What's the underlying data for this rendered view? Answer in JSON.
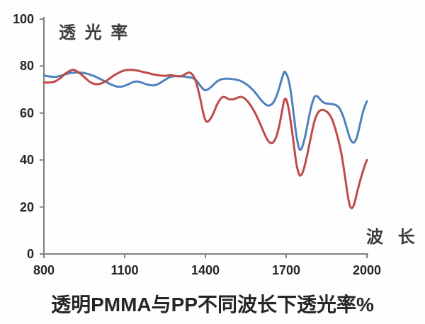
{
  "figure": {
    "y_axis_title": "透 光 率",
    "x_axis_title": "波 长",
    "caption": "透明PMMA与PP不同波长下透光率%",
    "colors": {
      "blue_line": "#4f81bd",
      "red_line": "#be4b48",
      "axis": "#808080",
      "text": "#262626"
    }
  },
  "chart_data": {
    "type": "line",
    "title": "透明PMMA与PP不同波长下透光率%",
    "xlabel": "波 长",
    "ylabel": "透 光 率",
    "xlim": [
      800,
      2000
    ],
    "ylim": [
      0,
      100
    ],
    "x_ticks": [
      800,
      1100,
      1400,
      1700,
      2000
    ],
    "y_ticks": [
      0,
      20,
      40,
      60,
      80,
      100
    ],
    "grid": false,
    "legend": "none",
    "x": [
      800,
      820,
      840,
      860,
      880,
      900,
      910,
      925,
      940,
      955,
      970,
      985,
      1000,
      1015,
      1030,
      1045,
      1060,
      1075,
      1090,
      1105,
      1120,
      1135,
      1150,
      1165,
      1180,
      1195,
      1210,
      1225,
      1240,
      1255,
      1270,
      1285,
      1300,
      1315,
      1330,
      1342,
      1355,
      1367,
      1380,
      1392,
      1400,
      1408,
      1420,
      1432,
      1445,
      1460,
      1472,
      1485,
      1500,
      1515,
      1530,
      1545,
      1560,
      1575,
      1590,
      1605,
      1620,
      1632,
      1645,
      1655,
      1665,
      1675,
      1685,
      1693,
      1700,
      1708,
      1718,
      1728,
      1738,
      1748,
      1756,
      1765,
      1775,
      1785,
      1795,
      1805,
      1815,
      1825,
      1835,
      1845,
      1858,
      1870,
      1882,
      1895,
      1907,
      1918,
      1928,
      1936,
      1944,
      1952,
      1962,
      1972,
      1982,
      1991,
      2000
    ],
    "series": [
      {
        "name": "blue",
        "color": "#4f81bd",
        "values": [
          76.0,
          75.6,
          75.4,
          75.8,
          76.5,
          77.1,
          77.2,
          77.3,
          77.2,
          76.9,
          76.4,
          75.8,
          75.0,
          74.2,
          73.3,
          72.4,
          71.7,
          71.2,
          71.3,
          71.8,
          72.6,
          73.3,
          73.4,
          72.9,
          72.3,
          71.9,
          71.8,
          72.4,
          73.4,
          74.5,
          75.4,
          75.7,
          75.7,
          75.6,
          75.4,
          75.2,
          74.8,
          73.8,
          71.8,
          70.2,
          69.7,
          70.0,
          71.0,
          72.3,
          73.6,
          74.4,
          74.6,
          74.6,
          74.5,
          74.2,
          73.7,
          72.8,
          71.6,
          70.0,
          68.0,
          65.8,
          64.0,
          63.2,
          63.6,
          65.0,
          67.5,
          71.0,
          75.0,
          77.5,
          76.8,
          74.5,
          68.5,
          59.5,
          50.5,
          45.0,
          44.7,
          47.5,
          52.5,
          58.5,
          63.5,
          66.8,
          67.2,
          66.0,
          64.8,
          64.2,
          64.0,
          63.8,
          63.5,
          62.5,
          60.0,
          56.5,
          52.5,
          49.5,
          47.8,
          47.5,
          49.5,
          54.0,
          59.0,
          62.5,
          65.0
        ]
      },
      {
        "name": "red",
        "color": "#be4b48",
        "values": [
          73.0,
          73.0,
          73.4,
          74.8,
          76.8,
          78.2,
          78.4,
          77.6,
          76.3,
          74.8,
          73.3,
          72.5,
          72.3,
          72.7,
          73.6,
          74.8,
          76.0,
          77.0,
          77.8,
          78.3,
          78.4,
          78.3,
          78.0,
          77.6,
          77.2,
          76.8,
          76.4,
          76.1,
          75.9,
          75.9,
          76.1,
          75.9,
          75.6,
          75.9,
          76.9,
          77.2,
          75.8,
          72.5,
          66.5,
          60.0,
          57.0,
          56.3,
          57.8,
          60.5,
          64.0,
          66.5,
          66.8,
          66.0,
          65.8,
          66.3,
          66.9,
          66.3,
          64.5,
          62.0,
          58.8,
          55.0,
          51.0,
          48.3,
          47.2,
          48.0,
          50.5,
          55.0,
          61.0,
          65.5,
          65.8,
          62.5,
          55.5,
          47.0,
          38.5,
          34.0,
          33.6,
          36.0,
          40.5,
          46.0,
          51.5,
          56.5,
          59.5,
          61.0,
          61.4,
          61.0,
          59.8,
          57.5,
          53.5,
          48.0,
          41.5,
          33.5,
          25.5,
          20.8,
          19.5,
          21.0,
          25.5,
          30.0,
          34.0,
          37.3,
          40.0
        ]
      }
    ]
  }
}
